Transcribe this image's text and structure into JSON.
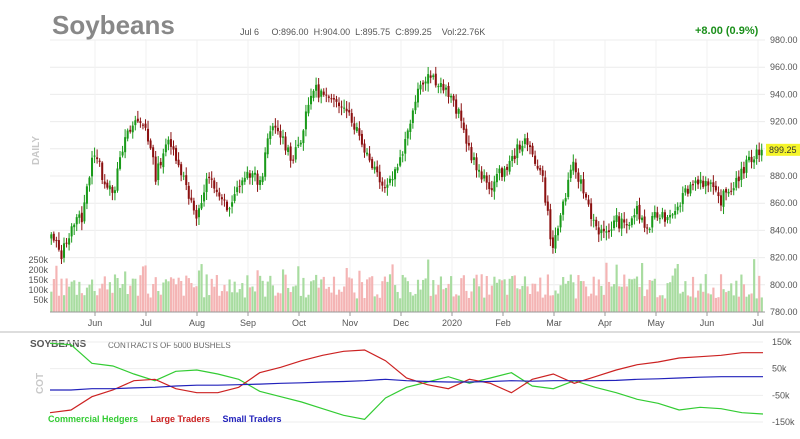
{
  "header": {
    "title": "Soybeans",
    "date": "Jul 6",
    "open": "O:896.00",
    "high": "H:904.00",
    "low": "L:895.75",
    "close": "C:899.25",
    "volume": "Vol:22.76K",
    "change": "+8.00 (0.9%)"
  },
  "side_labels": {
    "price": "DAILY",
    "cot": "COT"
  },
  "colors": {
    "up": "#1a9a1a",
    "down": "#8b1010",
    "vol_up": "#a8dca0",
    "vol_down": "#f4b4b4",
    "last_bg": "#f5f52a",
    "commercial": "#33cc33",
    "large": "#cc2222",
    "small": "#2222bb"
  },
  "chart_data": [
    {
      "type": "candlestick",
      "title": "Soybeans",
      "x_tick_labels": [
        "Jun",
        "Jul",
        "Aug",
        "Sep",
        "Oct",
        "Nov",
        "Dec",
        "2020",
        "Feb",
        "Mar",
        "Apr",
        "May",
        "Jun",
        "Jul"
      ],
      "y_tick_labels": [
        "980.00",
        "960.00",
        "940.00",
        "920.00",
        "900.00",
        "880.00",
        "860.00",
        "840.00",
        "820.00",
        "800.00",
        "780.00"
      ],
      "ylim": [
        780,
        980
      ],
      "last_price_label": "899.25",
      "close_anchor_values": [
        835,
        822,
        845,
        850,
        900,
        878,
        870,
        905,
        920,
        918,
        880,
        905,
        895,
        870,
        850,
        878,
        868,
        852,
        875,
        882,
        875,
        915,
        910,
        893,
        910,
        945,
        940,
        932,
        935,
        918,
        900,
        885,
        872,
        885,
        908,
        944,
        955,
        950,
        940,
        925,
        900,
        880,
        872,
        882,
        890,
        906,
        898,
        880,
        825,
        860,
        888,
        868,
        845,
        835,
        848,
        842,
        855,
        840,
        852,
        850,
        860,
        872,
        878,
        872,
        862,
        870,
        882,
        893,
        899.25
      ],
      "volume_axis_labels": [
        "250k",
        "200k",
        "150k",
        "100k",
        "50k"
      ]
    },
    {
      "type": "line",
      "title": "SOYBEANS",
      "subtitle": "CONTRACTS OF 5000 BUSHELS",
      "y_tick_labels": [
        "150k",
        "50k",
        "-50k",
        "-150k"
      ],
      "ylim": [
        -150000,
        150000
      ],
      "series": [
        {
          "name": "Commercial Hedgers",
          "values": [
            145000,
            140000,
            70000,
            60000,
            30000,
            5000,
            40000,
            45000,
            30000,
            10000,
            -35000,
            -55000,
            -75000,
            -100000,
            -125000,
            -140000,
            -60000,
            -20000,
            0,
            20000,
            -5000,
            15000,
            35000,
            -15000,
            -25000,
            5000,
            -20000,
            -40000,
            -65000,
            -80000,
            -105000,
            -95000,
            -100000,
            -115000,
            -120000
          ]
        },
        {
          "name": "Large Traders",
          "values": [
            -115000,
            -105000,
            -55000,
            -30000,
            5000,
            10000,
            -25000,
            -40000,
            -40000,
            -20000,
            35000,
            55000,
            80000,
            100000,
            115000,
            120000,
            80000,
            15000,
            -10000,
            -25000,
            10000,
            -5000,
            -40000,
            10000,
            30000,
            -5000,
            20000,
            45000,
            65000,
            75000,
            90000,
            95000,
            100000,
            110000,
            110000
          ]
        },
        {
          "name": "Small Traders",
          "values": [
            -30000,
            -30000,
            -25000,
            -25000,
            -22000,
            -20000,
            -15000,
            -12000,
            -12000,
            -10000,
            -8000,
            -5000,
            -3000,
            0,
            2000,
            5000,
            10000,
            5000,
            2000,
            0,
            0,
            2000,
            5000,
            3000,
            5000,
            5000,
            5000,
            6000,
            10000,
            12000,
            15000,
            18000,
            20000,
            20000,
            20000
          ]
        }
      ]
    }
  ]
}
